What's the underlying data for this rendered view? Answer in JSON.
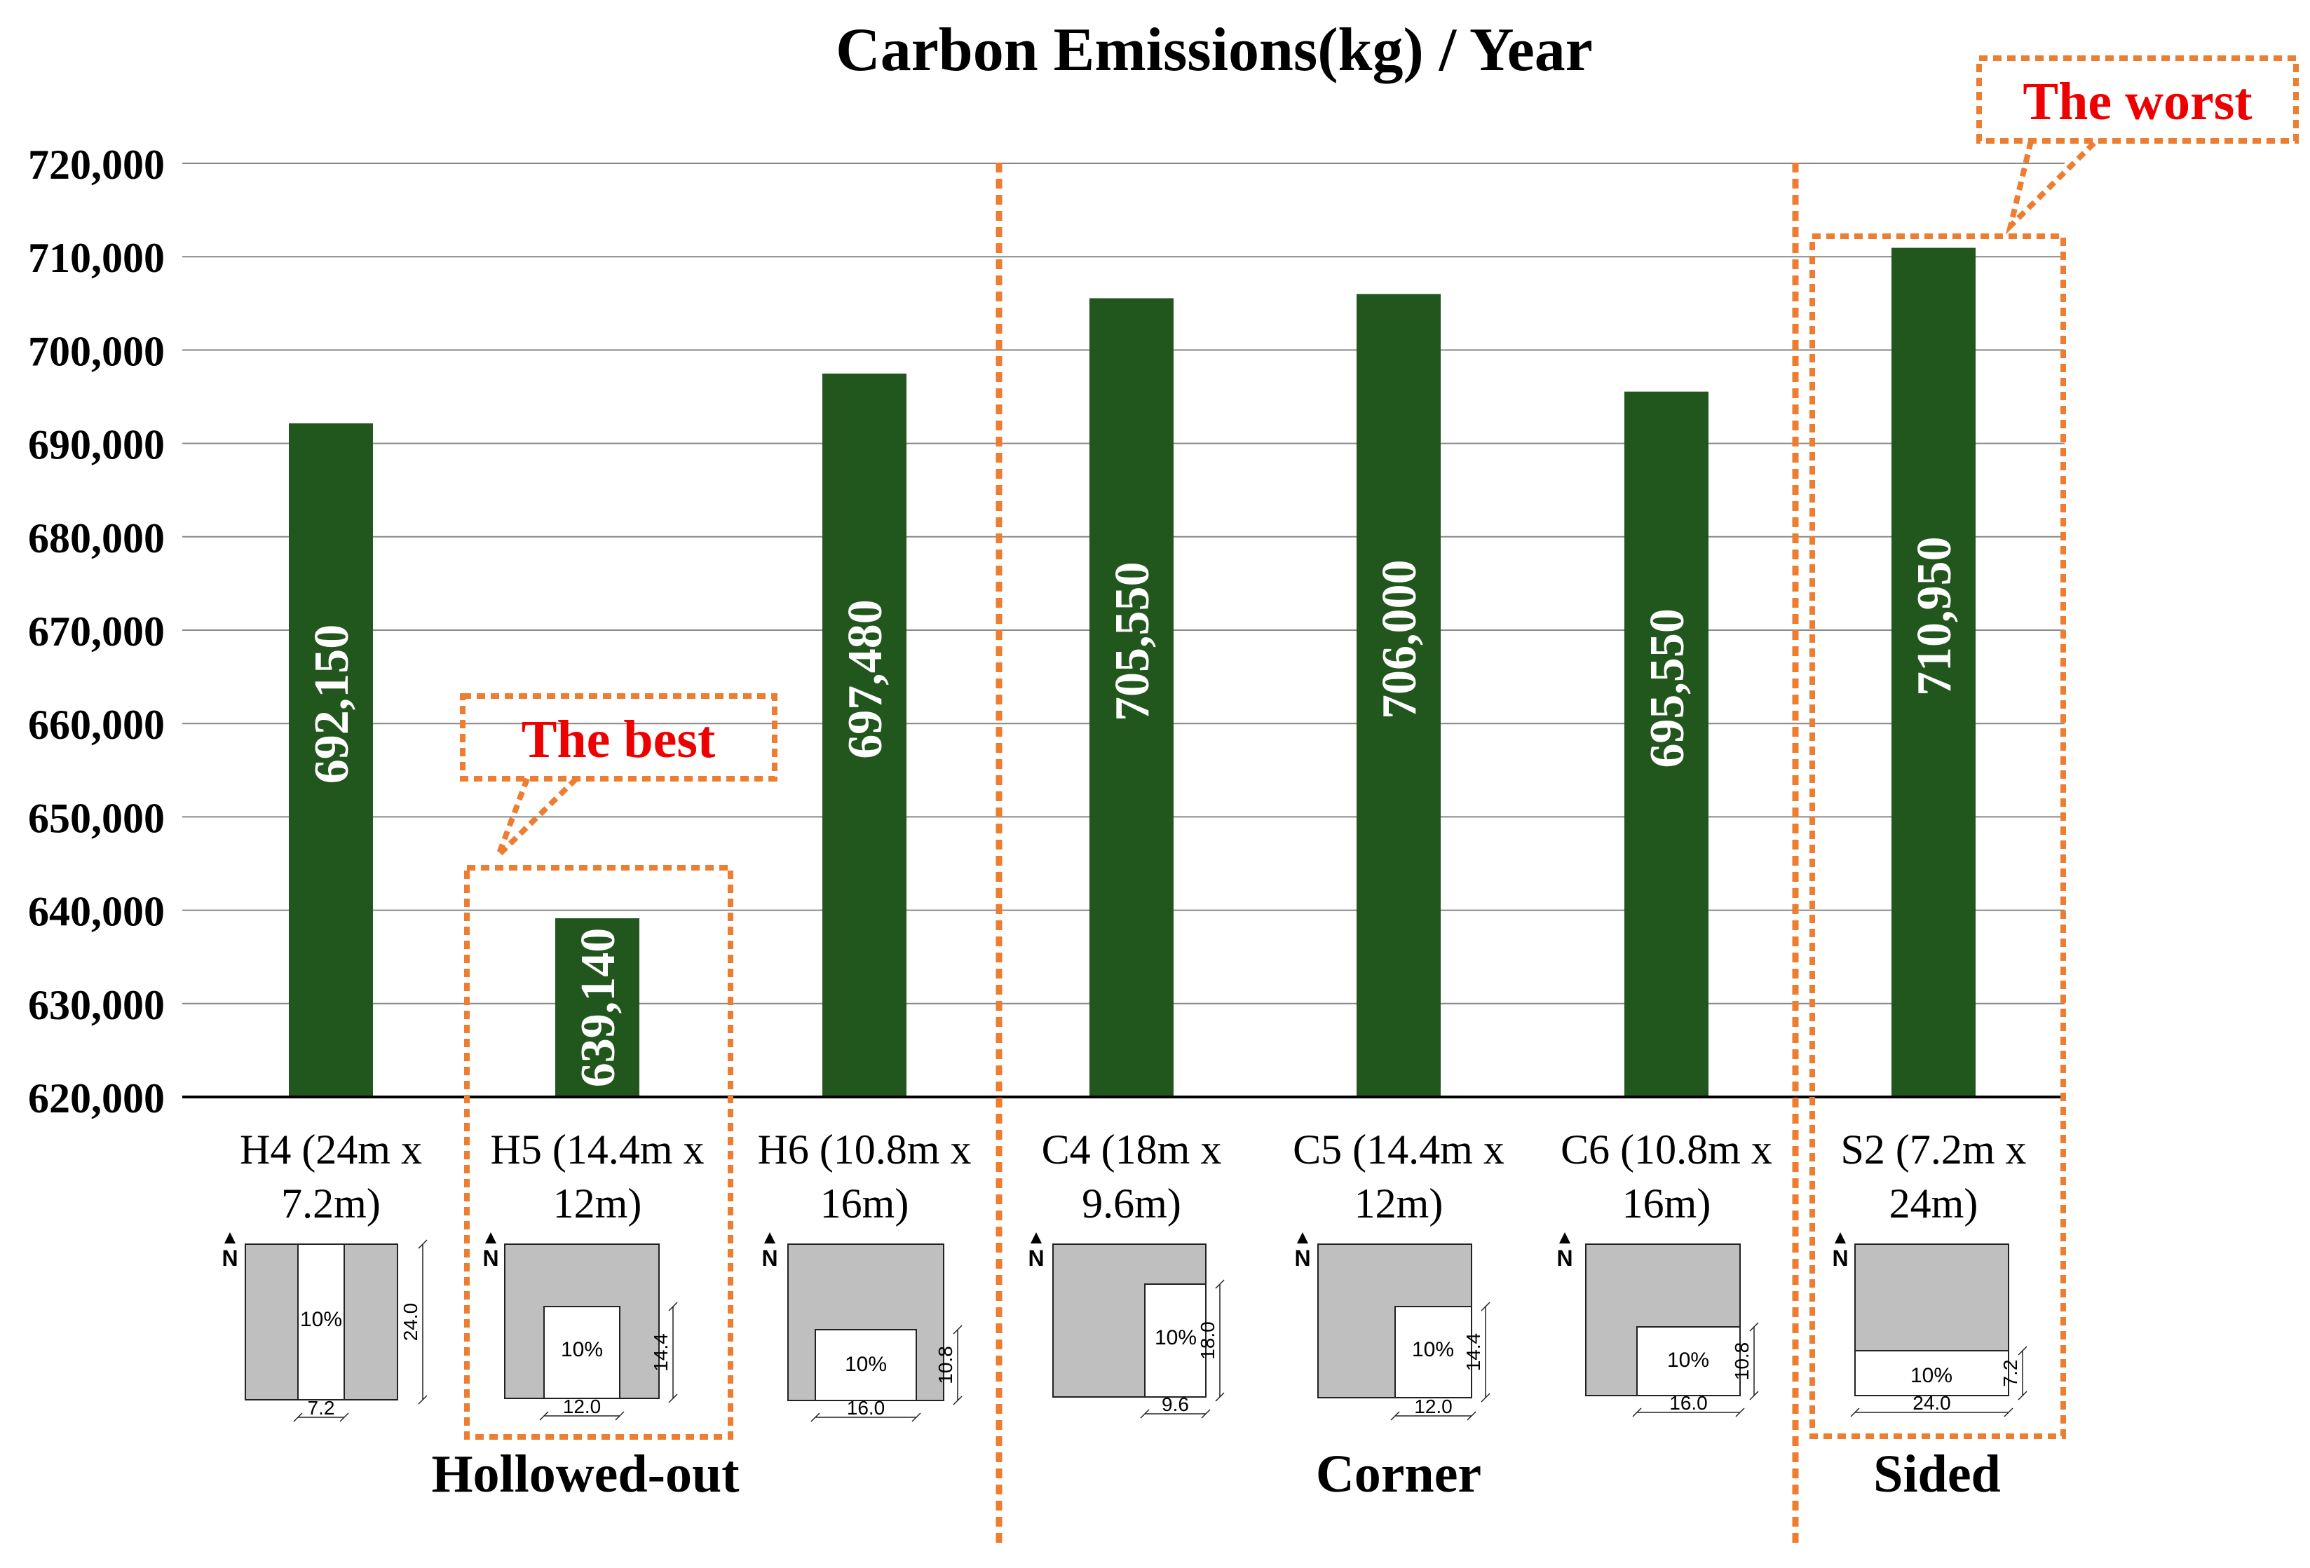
{
  "chart_data": {
    "type": "bar",
    "title": "Carbon Emissions(kg) / Year",
    "xlabel": "",
    "ylabel": "",
    "ylim": [
      620000,
      720000
    ],
    "yticks": [
      620000,
      630000,
      640000,
      650000,
      660000,
      670000,
      680000,
      690000,
      700000,
      710000,
      720000
    ],
    "ytick_labels": [
      "620,000",
      "630,000",
      "640,000",
      "650,000",
      "660,000",
      "670,000",
      "680,000",
      "690,000",
      "700,000",
      "710,000",
      "720,000"
    ],
    "grid": true,
    "bar_color": "#21561c",
    "categories": [
      {
        "line1": "H4 (24m x",
        "line2": "7.2m)"
      },
      {
        "line1": "H5 (14.4m x",
        "line2": "12m)"
      },
      {
        "line1": "H6 (10.8m x",
        "line2": "16m)"
      },
      {
        "line1": "C4 (18m x",
        "line2": "9.6m)"
      },
      {
        "line1": "C5 (14.4m x",
        "line2": "12m)"
      },
      {
        "line1": "C6 (10.8m x",
        "line2": "16m)"
      },
      {
        "line1": "S2 (7.2m x",
        "line2": "24m)"
      }
    ],
    "values": [
      692150,
      639140,
      697480,
      705550,
      706000,
      695550,
      710950
    ],
    "data_labels": [
      "692,150",
      "639,140",
      "697,480",
      "705,550",
      "706,000",
      "695,550",
      "710,950"
    ],
    "groups": [
      {
        "label": "Hollowed-out",
        "members": [
          0,
          1,
          2
        ]
      },
      {
        "label": "Corner",
        "members": [
          3,
          4,
          5
        ]
      },
      {
        "label": "Sided",
        "members": [
          6
        ]
      }
    ],
    "annotations": [
      {
        "text": "The best",
        "target": 1,
        "color": "#ee0000"
      },
      {
        "text": "The worst",
        "target": 6,
        "color": "#ee0000"
      }
    ],
    "highlight_color": "#ed7d31",
    "plans": [
      {
        "shape": "hollow-strip",
        "void_label": "10%",
        "width_label": "7.2",
        "depth_label": "24.0"
      },
      {
        "shape": "hollow-center",
        "void_label": "10%",
        "width_label": "12.0",
        "depth_label": "14.4"
      },
      {
        "shape": "hollow-center",
        "void_label": "10%",
        "width_label": "16.0",
        "depth_label": "10.8"
      },
      {
        "shape": "corner",
        "void_label": "10%",
        "width_label": "9.6",
        "depth_label": "18.0"
      },
      {
        "shape": "corner",
        "void_label": "10%",
        "width_label": "12.0",
        "depth_label": "14.4"
      },
      {
        "shape": "corner",
        "void_label": "10%",
        "width_label": "16.0",
        "depth_label": "10.8"
      },
      {
        "shape": "sided",
        "void_label": "10%",
        "width_label": "24.0",
        "depth_label": "7.2"
      }
    ],
    "north_label": "N"
  }
}
